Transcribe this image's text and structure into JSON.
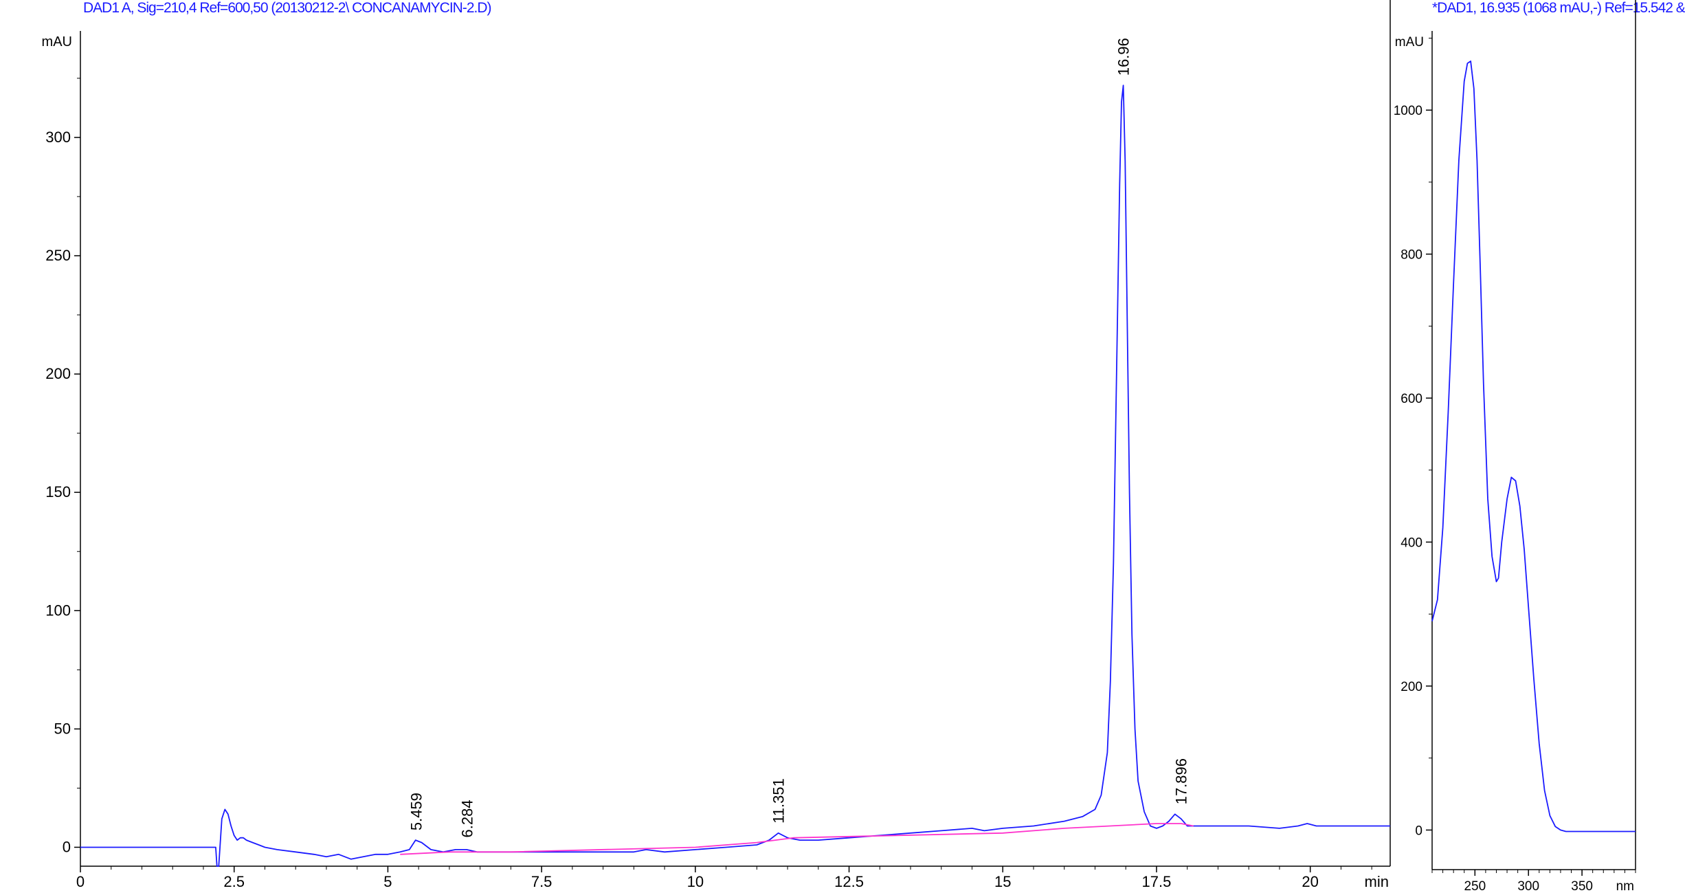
{
  "window": {
    "main_title": "DAD1 A, Sig=210,4 Ref=600,50 (20130212-2\\ CONCANAMYCIN-2.D)",
    "spectrum_title": "*DAD1, 16.935 (1068 mAU,-) Ref=15.542 &"
  },
  "colors": {
    "trace": "#1a1aff",
    "baseline": "#ff33cc",
    "axis": "#000000",
    "title": "#1a1aff"
  },
  "chart_data": [
    {
      "type": "line",
      "title": "DAD1 A, Sig=210,4 Ref=600,50 (20130212-2\\ CONCANAMYCIN-2.D)",
      "xlabel": "min",
      "ylabel": "mAU",
      "xlim": [
        0,
        21.3
      ],
      "ylim": [
        -8,
        345
      ],
      "x_ticks": [
        0,
        2.5,
        5,
        7.5,
        10,
        12.5,
        15,
        17.5,
        20
      ],
      "x_tick_labels": [
        "0",
        "2.5",
        "5",
        "7.5",
        "10",
        "12.5",
        "15",
        "17.5",
        "20"
      ],
      "y_ticks": [
        0,
        50,
        100,
        150,
        200,
        250,
        300
      ],
      "y_tick_labels": [
        "0",
        "50",
        "100",
        "150",
        "200",
        "250",
        "300"
      ],
      "grid": false,
      "series": [
        {
          "x": [
            0,
            2.2,
            2.22,
            2.25,
            2.27,
            2.3,
            2.35,
            2.4,
            2.45,
            2.5,
            2.55,
            2.6,
            2.65,
            2.7,
            2.8,
            2.9,
            3.0,
            3.2,
            3.5,
            3.8,
            4.0,
            4.2,
            4.4,
            4.6,
            4.8,
            5.0,
            5.2,
            5.35,
            5.45,
            5.55,
            5.7,
            5.9,
            6.1,
            6.28,
            6.45,
            6.6,
            7.0,
            8.0,
            9.0,
            9.2,
            9.5,
            10.0,
            10.5,
            11.0,
            11.2,
            11.35,
            11.5,
            11.7,
            12.0,
            12.5,
            13.0,
            13.5,
            14.0,
            14.5,
            14.7,
            15.0,
            15.5,
            16.0,
            16.3,
            16.5,
            16.6,
            16.7,
            16.75,
            16.8,
            16.85,
            16.9,
            16.93,
            16.96,
            16.99,
            17.02,
            17.06,
            17.1,
            17.15,
            17.2,
            17.3,
            17.4,
            17.5,
            17.6,
            17.7,
            17.8,
            17.9,
            18.0,
            18.1,
            18.5,
            19.0,
            19.5,
            19.8,
            19.95,
            20.1,
            20.5,
            21.0,
            21.3
          ],
          "values": [
            0,
            0,
            -8,
            -8,
            0,
            12,
            16,
            14,
            9,
            5,
            3,
            4,
            4,
            3,
            2,
            1,
            0,
            -1,
            -2,
            -3,
            -4,
            -3,
            -5,
            -4,
            -3,
            -3,
            -2,
            -1,
            3,
            2,
            -1,
            -2,
            -1,
            -1,
            -2,
            -2,
            -2,
            -2,
            -2,
            -1,
            -2,
            -1,
            0,
            1,
            3,
            6,
            4,
            3,
            3,
            4,
            5,
            6,
            7,
            8,
            7,
            8,
            9,
            11,
            13,
            16,
            22,
            40,
            70,
            120,
            200,
            280,
            315,
            322,
            290,
            230,
            150,
            90,
            50,
            28,
            15,
            9,
            8,
            9,
            11,
            14,
            12,
            9,
            9,
            9,
            9,
            8,
            9,
            10,
            9,
            9,
            9,
            9
          ]
        },
        {
          "x": [
            5.2,
            6.0,
            7.0,
            10.0,
            11.0,
            11.6,
            15.0,
            16.0,
            17.5,
            17.9,
            18.1
          ],
          "values": [
            -3,
            -2,
            -2,
            0,
            2,
            4,
            6,
            8,
            10,
            10,
            9
          ]
        }
      ],
      "peak_labels": [
        {
          "x": 5.459,
          "y": 3,
          "label": "5.459"
        },
        {
          "x": 6.284,
          "y": 0,
          "label": "6.284"
        },
        {
          "x": 11.351,
          "y": 6,
          "label": "11.351"
        },
        {
          "x": 16.96,
          "y": 322,
          "label": "16.96"
        },
        {
          "x": 17.896,
          "y": 14,
          "label": "17.896"
        }
      ]
    },
    {
      "type": "line",
      "title": "*DAD1, 16.935 (1068 mAU,-) Ref=15.542 &",
      "xlabel": "nm",
      "ylabel": "mAU",
      "xlim": [
        210,
        400
      ],
      "ylim": [
        -55,
        1110
      ],
      "x_ticks": [
        250,
        300,
        350
      ],
      "x_tick_labels": [
        "250",
        "300",
        "350"
      ],
      "y_ticks": [
        0,
        200,
        400,
        600,
        800,
        1000
      ],
      "y_tick_labels": [
        "0",
        "200",
        "400",
        "600",
        "800",
        "1000"
      ],
      "grid": false,
      "series": [
        {
          "x": [
            210,
            215,
            220,
            225,
            230,
            235,
            240,
            243,
            246,
            249,
            252,
            255,
            258,
            262,
            266,
            270,
            272,
            275,
            280,
            284,
            288,
            292,
            296,
            300,
            305,
            310,
            315,
            320,
            325,
            330,
            335,
            340,
            360,
            400
          ],
          "values": [
            290,
            320,
            420,
            580,
            760,
            930,
            1040,
            1065,
            1068,
            1030,
            930,
            780,
            620,
            460,
            380,
            345,
            350,
            400,
            460,
            490,
            485,
            450,
            390,
            310,
            210,
            120,
            55,
            20,
            5,
            0,
            -2,
            -2,
            -2,
            -2
          ]
        }
      ]
    }
  ]
}
